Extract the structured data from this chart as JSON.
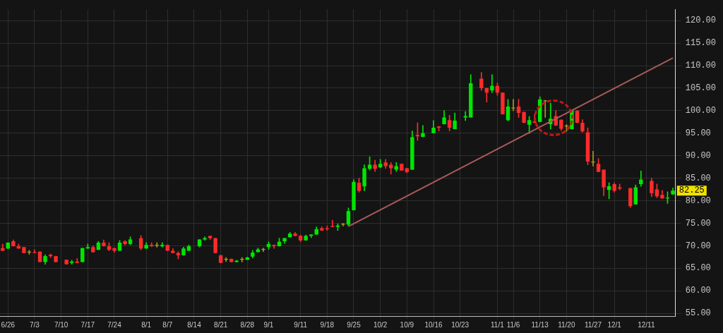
{
  "chart_data": {
    "type": "candlestick",
    "categories": [
      null,
      "6/26",
      null,
      null,
      null,
      null,
      "7/3",
      null,
      null,
      null,
      null,
      "7/10",
      null,
      null,
      null,
      null,
      "7/17",
      null,
      null,
      null,
      null,
      "7/24",
      null,
      null,
      null,
      null,
      null,
      "8/1",
      null,
      null,
      null,
      "8/7",
      null,
      null,
      null,
      null,
      "8/14",
      null,
      null,
      null,
      null,
      "8/21",
      null,
      null,
      null,
      null,
      "8/28",
      null,
      null,
      null,
      "9/1",
      null,
      null,
      null,
      null,
      null,
      "9/11",
      null,
      null,
      null,
      null,
      "9/18",
      null,
      null,
      null,
      null,
      "9/25",
      null,
      null,
      null,
      null,
      "10/2",
      null,
      null,
      null,
      null,
      "10/9",
      null,
      null,
      null,
      null,
      "10/16",
      null,
      null,
      null,
      null,
      "10/23",
      null,
      null,
      null,
      null,
      null,
      null,
      "11/1",
      null,
      null,
      "11/6",
      null,
      null,
      null,
      null,
      "11/13",
      null,
      null,
      null,
      null,
      "11/20",
      null,
      null,
      null,
      null,
      "11/27",
      null,
      null,
      null,
      "12/1",
      null,
      null,
      null,
      null,
      null,
      "12/11",
      null,
      null,
      null,
      null,
      null
    ],
    "ohlc": [
      [
        69.5,
        70.4,
        68.9,
        68.9
      ],
      [
        69.4,
        70.7,
        69.3,
        70.7
      ],
      [
        71.0,
        71.3,
        69.9,
        69.9
      ],
      [
        69.9,
        70.4,
        69.4,
        69.4
      ],
      [
        69.7,
        69.7,
        68.4,
        68.4
      ],
      [
        68.5,
        69.0,
        68.1,
        68.7
      ],
      [
        68.6,
        69.1,
        68.4,
        68.4
      ],
      [
        68.7,
        68.7,
        66.4,
        66.4
      ],
      [
        66.4,
        68.0,
        65.9,
        67.7
      ],
      [
        68.0,
        68.2,
        67.4,
        67.7
      ],
      [
        67.7,
        67.7,
        66.4,
        66.4
      ],
      null,
      [
        66.9,
        66.9,
        65.9,
        65.9
      ],
      [
        66.2,
        66.8,
        65.9,
        66.5
      ],
      [
        66.5,
        67.2,
        66.2,
        66.2
      ],
      [
        66.4,
        69.5,
        66.4,
        69.5
      ],
      [
        69.4,
        70.4,
        69.4,
        69.7
      ],
      [
        69.7,
        70.0,
        68.5,
        68.6
      ],
      [
        69.1,
        71.0,
        69.1,
        70.7
      ],
      [
        70.7,
        71.3,
        69.9,
        69.9
      ],
      [
        69.9,
        70.7,
        68.9,
        69.1
      ],
      [
        69.5,
        69.5,
        68.6,
        68.9
      ],
      [
        68.9,
        71.2,
        68.9,
        70.7
      ],
      [
        71.0,
        71.2,
        70.2,
        70.4
      ],
      [
        70.4,
        72.0,
        70.2,
        71.4
      ],
      null,
      [
        71.7,
        72.3,
        69.1,
        69.4
      ],
      [
        69.4,
        70.7,
        69.4,
        70.2
      ],
      [
        70.2,
        70.7,
        69.8,
        69.9
      ],
      [
        70.0,
        70.7,
        69.7,
        70.2
      ],
      [
        69.9,
        70.7,
        69.7,
        70.2
      ],
      [
        70.2,
        70.2,
        68.9,
        68.9
      ],
      [
        68.9,
        69.4,
        68.4,
        68.4
      ],
      [
        68.4,
        68.7,
        67.1,
        67.9
      ],
      [
        67.9,
        69.7,
        67.9,
        69.4
      ],
      [
        68.9,
        70.2,
        68.9,
        69.9
      ],
      null,
      [
        69.9,
        71.4,
        69.7,
        71.4
      ],
      [
        71.4,
        72.0,
        71.2,
        71.7
      ],
      [
        72.2,
        72.2,
        71.4,
        71.7
      ],
      [
        71.7,
        71.7,
        68.4,
        68.4
      ],
      [
        67.9,
        67.9,
        66.2,
        66.2
      ],
      [
        66.9,
        67.4,
        66.5,
        67.1
      ],
      [
        67.1,
        67.1,
        66.4,
        66.4
      ],
      [
        66.4,
        66.8,
        66.4,
        66.7
      ],
      [
        66.9,
        67.4,
        66.4,
        67.1
      ],
      [
        66.9,
        67.5,
        66.9,
        67.4
      ],
      [
        67.6,
        69.0,
        67.3,
        68.5
      ],
      [
        68.6,
        69.5,
        68.6,
        69.2
      ],
      [
        69.1,
        69.5,
        68.7,
        69.3
      ],
      [
        69.7,
        70.9,
        69.2,
        70.4
      ],
      [
        70.2,
        70.2,
        69.4,
        69.9
      ],
      [
        69.9,
        71.7,
        69.9,
        70.9
      ],
      [
        71.0,
        71.7,
        70.5,
        71.7
      ],
      [
        71.9,
        73.0,
        71.9,
        72.7
      ],
      [
        72.7,
        73.0,
        72.2,
        72.2
      ],
      [
        72.2,
        72.4,
        70.9,
        71.2
      ],
      [
        71.2,
        72.4,
        71.2,
        72.2
      ],
      [
        72.2,
        72.5,
        71.8,
        72.5
      ],
      [
        72.5,
        74.2,
        72.5,
        73.7
      ],
      [
        73.9,
        74.2,
        73.4,
        73.4
      ],
      [
        73.9,
        74.4,
        73.4,
        73.7
      ],
      [
        74.4,
        75.7,
        74.2,
        74.2
      ],
      [
        74.2,
        74.9,
        73.4,
        74.5
      ],
      [
        74.7,
        75.0,
        74.4,
        74.9
      ],
      [
        74.7,
        78.4,
        74.4,
        77.7
      ],
      [
        77.9,
        84.7,
        77.9,
        84.2
      ],
      [
        84.0,
        85.0,
        81.9,
        82.2
      ],
      [
        83.2,
        88.0,
        82.2,
        87.2
      ],
      [
        87.1,
        89.8,
        86.8,
        88.0
      ],
      [
        88.0,
        89.0,
        86.5,
        87.1
      ],
      [
        87.4,
        89.2,
        87.3,
        88.2
      ],
      [
        88.5,
        89.2,
        87.2,
        87.7
      ],
      [
        88.0,
        88.5,
        85.9,
        87.2
      ],
      [
        86.9,
        88.5,
        86.5,
        87.7
      ],
      [
        88.2,
        88.2,
        86.7,
        86.7
      ],
      [
        87.2,
        87.2,
        86.2,
        86.4
      ],
      [
        86.9,
        95.5,
        86.9,
        94.1
      ],
      [
        94.6,
        97.3,
        93.4,
        94.3
      ],
      [
        94.2,
        96.7,
        94.2,
        95.0
      ],
      null,
      [
        95.0,
        97.8,
        95.0,
        96.2
      ],
      [
        96.5,
        96.5,
        95.5,
        96.2
      ],
      [
        97.0,
        100.0,
        97.0,
        98.5
      ],
      [
        97.9,
        99.0,
        95.5,
        96.2
      ],
      [
        95.9,
        99.5,
        95.9,
        97.8
      ],
      null,
      [
        98.5,
        99.8,
        97.8,
        98.8
      ],
      [
        98.5,
        108.0,
        98.5,
        106.1
      ],
      null,
      [
        107.1,
        108.5,
        104.5,
        105.0
      ],
      [
        105.0,
        105.0,
        101.9,
        104.0
      ],
      [
        104.5,
        108.0,
        104.0,
        105.5
      ],
      [
        105.5,
        106.1,
        103.4,
        104.0
      ],
      [
        104.0,
        104.0,
        99.2,
        99.2
      ],
      [
        97.9,
        102.5,
        97.7,
        100.9
      ],
      [
        100.5,
        102.5,
        100.0,
        100.7
      ],
      [
        100.9,
        102.5,
        98.5,
        99.5
      ],
      [
        99.7,
        99.7,
        97.3,
        97.3
      ],
      [
        96.9,
        98.7,
        94.9,
        97.9
      ],
      [
        97.6,
        99.0,
        97.3,
        97.3
      ],
      [
        97.5,
        103.1,
        97.5,
        102.5
      ],
      [
        102.1,
        102.3,
        98.5,
        102.3
      ],
      [
        97.0,
        101.7,
        95.9,
        98.2
      ],
      [
        98.8,
        100.0,
        96.7,
        96.7
      ],
      [
        98.0,
        98.0,
        95.6,
        96.0
      ],
      [
        96.5,
        96.9,
        95.4,
        96.7
      ],
      [
        95.9,
        100.0,
        95.9,
        100.0
      ],
      [
        100.0,
        100.0,
        97.3,
        97.3
      ],
      [
        97.3,
        98.0,
        95.2,
        95.4
      ],
      [
        95.2,
        96.2,
        88.0,
        88.7
      ],
      [
        88.5,
        91.0,
        87.7,
        88.7
      ],
      [
        88.2,
        89.4,
        86.4,
        86.4
      ],
      [
        86.9,
        86.9,
        81.1,
        83.0
      ],
      [
        82.4,
        84.0,
        80.4,
        83.2
      ],
      [
        83.7,
        84.0,
        81.9,
        82.2
      ],
      [
        83.0,
        83.7,
        82.4,
        82.7
      ],
      null,
      [
        82.8,
        82.8,
        78.5,
        78.8
      ],
      [
        79.2,
        83.5,
        79.2,
        83.0
      ],
      [
        83.7,
        86.6,
        83.2,
        84.7
      ],
      null,
      [
        84.4,
        85.0,
        80.9,
        81.7
      ],
      [
        82.5,
        83.7,
        80.7,
        81.0
      ],
      [
        81.3,
        82.3,
        80.5,
        80.5
      ],
      [
        80.5,
        82.0,
        79.4,
        80.7
      ],
      [
        81.4,
        82.8,
        81.4,
        82.25
      ]
    ],
    "colors": [
      "#ff2a2a",
      "#00e600",
      "#ff2a2a",
      "#ff2a2a",
      "#ff2a2a",
      "#a89a20",
      "#ff2a2a",
      "#ff2a2a",
      "#00e600",
      "#ff2a2a",
      "#ff2a2a",
      null,
      "#ff2a2a",
      "#00e600",
      "#ff2a2a",
      "#00e600",
      "#00e600",
      "#ff2a2a",
      "#00e600",
      "#ff2a2a",
      "#ff2a2a",
      "#ff2a2a",
      "#00e600",
      "#ff2a2a",
      "#00e600",
      null,
      "#ff2a2a",
      "#00e600",
      "#ff2a2a",
      "#a89a20",
      "#00e600",
      "#ff2a2a",
      "#ff2a2a",
      "#ff2a2a",
      "#00e600",
      "#00e600",
      null,
      "#00e600",
      "#00e600",
      "#ff2a2a",
      "#ff2a2a",
      "#ff2a2a",
      "#a89a20",
      "#ff2a2a",
      "#00e600",
      "#a89a20",
      "#00e600",
      "#00e600",
      "#00e600",
      "#a89a20",
      "#00e600",
      "#ff2a2a",
      "#00e600",
      "#00e600",
      "#00e600",
      "#ff2a2a",
      "#ff2a2a",
      "#00e600",
      "#00e600",
      "#00e600",
      "#ff2a2a",
      "#ff2a2a",
      "#ff2a2a",
      "#00e600",
      "#a89a20",
      "#00e600",
      "#00e600",
      "#ff2a2a",
      "#00e600",
      "#00e600",
      "#ff2a2a",
      "#00e600",
      "#ff2a2a",
      "#ff2a2a",
      "#00e600",
      "#ff2a2a",
      "#ff2a2a",
      "#00e600",
      "#ff2a2a",
      "#00e600",
      null,
      "#00e600",
      "#ff2a2a",
      "#00e600",
      "#ff2a2a",
      "#00e600",
      null,
      "#00e600",
      "#00e600",
      null,
      "#ff2a2a",
      "#ff2a2a",
      "#00e600",
      "#ff2a2a",
      "#ff2a2a",
      "#00e600",
      "#a89a20",
      "#ff2a2a",
      "#ff2a2a",
      "#00e600",
      "#ff2a2a",
      "#00e600",
      "#a89a20",
      "#00e600",
      "#ff2a2a",
      "#ff2a2a",
      "#a89a20",
      "#00e600",
      "#ff2a2a",
      "#ff2a2a",
      "#ff2a2a",
      "#a89a20",
      "#ff2a2a",
      "#ff2a2a",
      "#00e600",
      "#ff2a2a",
      "#ff2a2a",
      null,
      "#ff2a2a",
      "#00e600",
      "#00e600",
      null,
      "#ff2a2a",
      "#ff2a2a",
      "#ff2a2a",
      "#00e600",
      "#00e600"
    ],
    "series": [
      {
        "type": "line",
        "color": "#a85a5a",
        "values": [
          null,
          null,
          null,
          null,
          null,
          null,
          null,
          null,
          null,
          null,
          null,
          null,
          null,
          null,
          null,
          null,
          null,
          null,
          null,
          null,
          null,
          null,
          null,
          null,
          null,
          null,
          null,
          null,
          null,
          null,
          null,
          null,
          null,
          null,
          null,
          null,
          null,
          null,
          null,
          null,
          null,
          null,
          null,
          null,
          null,
          null,
          null,
          null,
          null,
          null,
          null,
          null,
          null,
          null,
          null,
          null,
          null,
          null,
          null,
          null,
          null,
          null,
          null,
          null,
          null,
          74.3,
          null,
          null,
          null,
          null,
          null,
          null,
          null,
          null,
          null,
          null,
          null,
          null,
          null,
          null,
          null,
          null,
          null,
          null,
          null,
          null,
          null,
          null,
          null,
          null,
          null,
          null,
          null,
          null,
          null,
          null,
          null,
          null,
          null,
          null,
          null,
          null,
          null,
          null,
          null,
          null,
          null,
          null,
          null,
          null,
          null,
          null,
          null,
          null,
          null,
          null,
          null,
          null,
          null,
          null,
          null,
          null,
          null,
          null,
          null,
          null,
          111.7
        ]
      }
    ],
    "ylim": [
      54.4,
      122.5
    ],
    "yticks": [
      {
        "value": 55,
        "label": "55.00"
      },
      {
        "value": 60,
        "label": "60.00"
      },
      {
        "value": 65,
        "label": "65.00"
      },
      {
        "value": 70,
        "label": "70.00"
      },
      {
        "value": 75,
        "label": "75.00"
      },
      {
        "value": 80,
        "label": "80.00"
      },
      {
        "value": 85,
        "label": "85.00"
      },
      {
        "value": 90,
        "label": "90.00"
      },
      {
        "value": 95,
        "label": "95.00"
      },
      {
        "value": 100,
        "label": "100.00"
      },
      {
        "value": 105,
        "label": "105.00"
      },
      {
        "value": 110,
        "label": "110.00"
      },
      {
        "value": 115,
        "label": "115.00"
      },
      {
        "value": 120,
        "label": "120.00"
      }
    ],
    "grid": true,
    "annotations": [
      {
        "text": "82.25",
        "y": 82.25
      }
    ]
  }
}
